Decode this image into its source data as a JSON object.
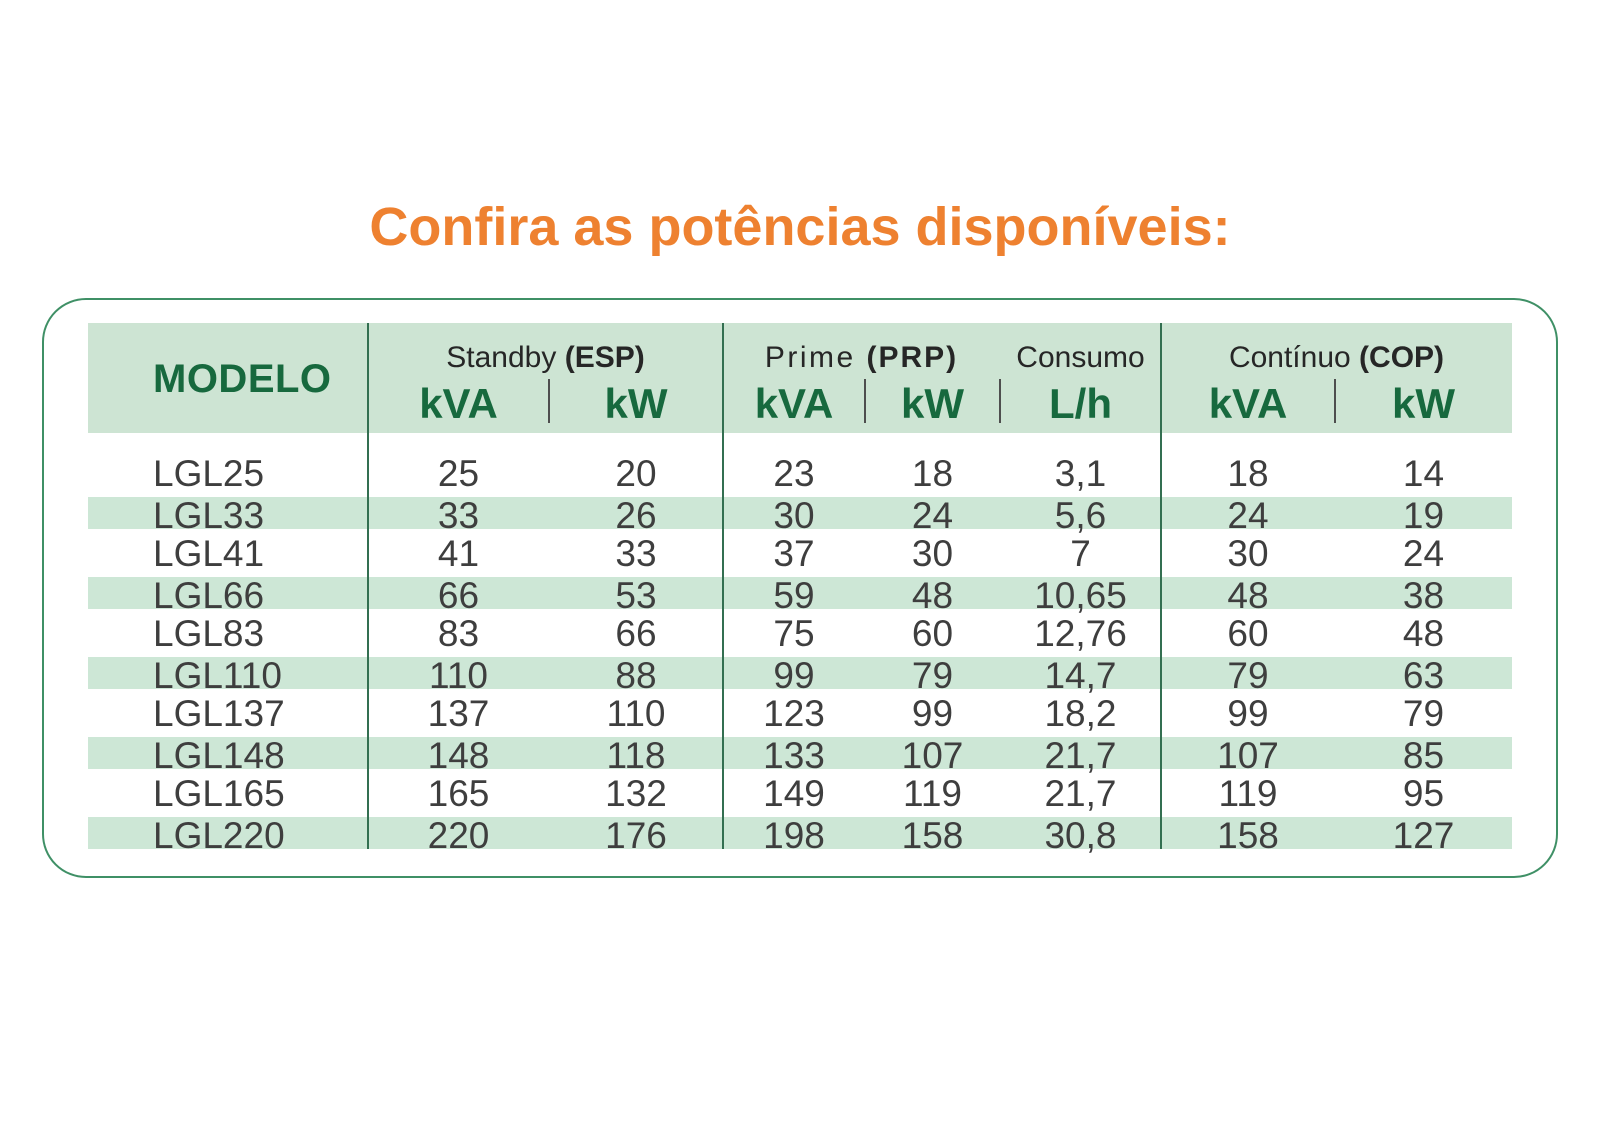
{
  "title": "Confira as potências disponíveis:",
  "colors": {
    "accent_orange": "#ee8130",
    "border_green": "#3f9066",
    "header_green": "#cde4d3",
    "stripe_green": "#cde7d6",
    "dark_green": "#17693e",
    "divider_green": "#336f51",
    "unit_sep_gray": "#4e4e4e",
    "label_dark": "#262626",
    "body_text": "#3e3e3e"
  },
  "table": {
    "model_header": "MODELO",
    "groups": {
      "standby": {
        "label": "Standby",
        "code": "(ESP)"
      },
      "prime": {
        "label": "Prime",
        "code": "(PRP)"
      },
      "consumo": {
        "label": "Consumo"
      },
      "continuo": {
        "label": "Contínuo",
        "code": "(COP)"
      }
    },
    "units": {
      "standby_kva": "kVA",
      "standby_kw": "kW",
      "prime_kva": "kVA",
      "prime_kw": "kW",
      "consumo_lh": "L/h",
      "continuo_kva": "kVA",
      "continuo_kw": "kW"
    },
    "rows": [
      {
        "model": "LGL25",
        "values": [
          "25",
          "20",
          "23",
          "18",
          "3,1",
          "18",
          "14"
        ]
      },
      {
        "model": "LGL33",
        "values": [
          "33",
          "26",
          "30",
          "24",
          "5,6",
          "24",
          "19"
        ]
      },
      {
        "model": "LGL41",
        "values": [
          "41",
          "33",
          "37",
          "30",
          "7",
          "30",
          "24"
        ]
      },
      {
        "model": "LGL66",
        "values": [
          "66",
          "53",
          "59",
          "48",
          "10,65",
          "48",
          "38"
        ]
      },
      {
        "model": "LGL83",
        "values": [
          "83",
          "66",
          "75",
          "60",
          "12,76",
          "60",
          "48"
        ]
      },
      {
        "model": "LGL110",
        "values": [
          "110",
          "88",
          "99",
          "79",
          "14,7",
          "79",
          "63"
        ]
      },
      {
        "model": "LGL137",
        "values": [
          "137",
          "110",
          "123",
          "99",
          "18,2",
          "99",
          "79"
        ]
      },
      {
        "model": "LGL148",
        "values": [
          "148",
          "118",
          "133",
          "107",
          "21,7",
          "107",
          "85"
        ]
      },
      {
        "model": "LGL165",
        "values": [
          "165",
          "132",
          "149",
          "119",
          "21,7",
          "119",
          "95"
        ]
      },
      {
        "model": "LGL220",
        "values": [
          "220",
          "176",
          "198",
          "158",
          "30,8",
          "158",
          "127"
        ]
      }
    ]
  }
}
